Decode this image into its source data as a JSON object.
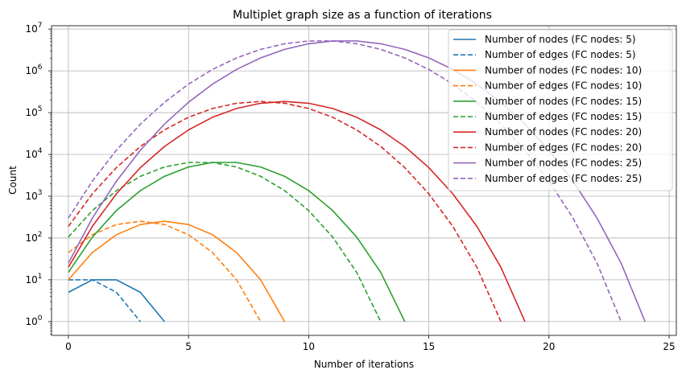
{
  "chart_data": {
    "type": "line",
    "title": "Multiplet graph size as a function of iterations",
    "xlabel": "Number of iterations",
    "ylabel": "Count",
    "xlim": [
      -0.7,
      25.3
    ],
    "ylim_log10": [
      -0.33,
      7.08
    ],
    "y_scale": "log",
    "grid": true,
    "legend_position": "top-right",
    "x_ticks": [
      0,
      5,
      10,
      15,
      20,
      25
    ],
    "x_tick_labels": [
      "0",
      "5",
      "10",
      "15",
      "20",
      "25"
    ],
    "y_ticks_log10": [
      0,
      1,
      2,
      3,
      4,
      5,
      6,
      7
    ],
    "y_tick_base": "10",
    "y_tick_exponents": [
      "0",
      "1",
      "2",
      "3",
      "4",
      "5",
      "6",
      "7"
    ],
    "series": [
      {
        "name": "Number of nodes (FC nodes: 5)",
        "color": "#1f77b4",
        "style": "solid",
        "x": [
          0,
          1,
          2,
          3,
          4
        ],
        "y": [
          5,
          10,
          10,
          5,
          1
        ]
      },
      {
        "name": "Number of edges (FC nodes: 5)",
        "color": "#1f77b4",
        "style": "dashed",
        "x": [
          0,
          1,
          2,
          3
        ],
        "y": [
          10,
          10,
          5,
          1
        ]
      },
      {
        "name": "Number of nodes (FC nodes: 10)",
        "color": "#ff7f0e",
        "style": "solid",
        "x": [
          0,
          1,
          2,
          3,
          4,
          5,
          6,
          7,
          8,
          9
        ],
        "y": [
          10,
          45,
          120,
          210,
          252,
          210,
          120,
          45,
          10,
          1
        ]
      },
      {
        "name": "Number of edges (FC nodes: 10)",
        "color": "#ff7f0e",
        "style": "dashed",
        "x": [
          0,
          1,
          2,
          3,
          4,
          5,
          6,
          7,
          8
        ],
        "y": [
          45,
          120,
          210,
          252,
          210,
          120,
          45,
          10,
          1
        ]
      },
      {
        "name": "Number of nodes (FC nodes: 15)",
        "color": "#2ca02c",
        "style": "solid",
        "x": [
          0,
          1,
          2,
          3,
          4,
          5,
          6,
          7,
          8,
          9,
          10,
          11,
          12,
          13,
          14
        ],
        "y": [
          15,
          105,
          455,
          1365,
          3003,
          5005,
          6435,
          6435,
          5005,
          3003,
          1365,
          455,
          105,
          15,
          1
        ]
      },
      {
        "name": "Number of edges (FC nodes: 15)",
        "color": "#2ca02c",
        "style": "dashed",
        "x": [
          0,
          1,
          2,
          3,
          4,
          5,
          6,
          7,
          8,
          9,
          10,
          11,
          12,
          13
        ],
        "y": [
          105,
          455,
          1365,
          3003,
          5005,
          6435,
          6435,
          5005,
          3003,
          1365,
          455,
          105,
          15,
          1
        ]
      },
      {
        "name": "Number of nodes (FC nodes: 20)",
        "color": "#d62728",
        "style": "solid",
        "x": [
          0,
          1,
          2,
          3,
          4,
          5,
          6,
          7,
          8,
          9,
          10,
          11,
          12,
          13,
          14,
          15,
          16,
          17,
          18,
          19
        ],
        "y": [
          20,
          190,
          1140,
          4845,
          15504,
          38760,
          77520,
          125970,
          167960,
          184756,
          167960,
          125970,
          77520,
          38760,
          15504,
          4845,
          1140,
          190,
          20,
          1
        ]
      },
      {
        "name": "Number of edges (FC nodes: 20)",
        "color": "#d62728",
        "style": "dashed",
        "x": [
          0,
          1,
          2,
          3,
          4,
          5,
          6,
          7,
          8,
          9,
          10,
          11,
          12,
          13,
          14,
          15,
          16,
          17,
          18
        ],
        "y": [
          190,
          1140,
          4845,
          15504,
          38760,
          77520,
          125970,
          167960,
          184756,
          167960,
          125970,
          77520,
          38760,
          15504,
          4845,
          1140,
          190,
          20,
          1
        ]
      },
      {
        "name": "Number of nodes (FC nodes: 25)",
        "color": "#9467bd",
        "style": "solid",
        "x": [
          0,
          1,
          2,
          3,
          4,
          5,
          6,
          7,
          8,
          9,
          10,
          11,
          12,
          13,
          14,
          15,
          16,
          17,
          18,
          19,
          20,
          21,
          22,
          23,
          24
        ],
        "y": [
          25,
          300,
          2300,
          12650,
          53130,
          177100,
          480700,
          1081575,
          2042975,
          3268760,
          4457400,
          5200300,
          5200300,
          4457400,
          3268760,
          2042975,
          1081575,
          480700,
          177100,
          53130,
          12650,
          2300,
          300,
          25,
          1
        ]
      },
      {
        "name": "Number of edges (FC nodes: 25)",
        "color": "#9467bd",
        "style": "dashed",
        "x": [
          0,
          1,
          2,
          3,
          4,
          5,
          6,
          7,
          8,
          9,
          10,
          11,
          12,
          13,
          14,
          15,
          16,
          17,
          18,
          19,
          20,
          21,
          22,
          23
        ],
        "y": [
          300,
          2300,
          12650,
          53130,
          177100,
          480700,
          1081575,
          2042975,
          3268760,
          4457400,
          5200300,
          5200300,
          4457400,
          3268760,
          2042975,
          1081575,
          480700,
          177100,
          53130,
          12650,
          2300,
          300,
          25,
          1
        ]
      }
    ]
  }
}
